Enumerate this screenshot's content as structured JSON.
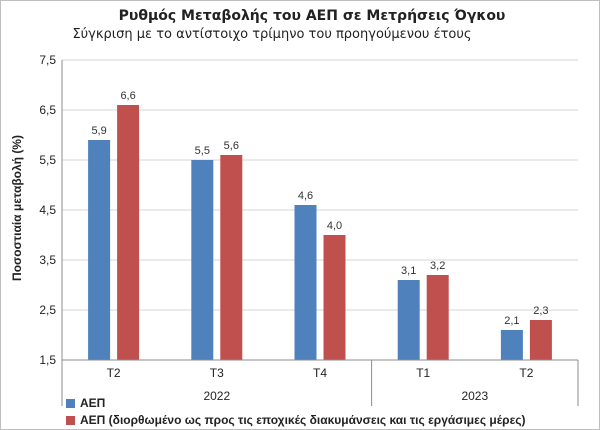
{
  "chart_data": {
    "type": "bar",
    "title": "Ρυθμός Μεταβολής του ΑΕΠ σε Μετρήσεις Όγκου",
    "subtitle": "Σύγκριση με το αντίστοιχο τρίμηνο του προηγούμενου έτους",
    "ylabel": "Ποσοστιαία μεταβολή (%)",
    "xlabel": "",
    "ylim": [
      1.5,
      7.5
    ],
    "yticks": [
      "1,5",
      "2,5",
      "3,5",
      "4,5",
      "5,5",
      "6,5",
      "7,5"
    ],
    "ytick_values": [
      1.5,
      2.5,
      3.5,
      4.5,
      5.5,
      6.5,
      7.5
    ],
    "categories": [
      "T2",
      "T3",
      "T4",
      "T1",
      "T2"
    ],
    "groups": [
      {
        "label": "2022",
        "count": 3
      },
      {
        "label": "2023",
        "count": 2
      }
    ],
    "grid": true,
    "legend_position": "bottom-left",
    "series": [
      {
        "name": "ΑΕΠ",
        "color": "#4f81bd",
        "values": [
          5.9,
          5.5,
          4.6,
          3.1,
          2.1
        ],
        "labels": [
          "5,9",
          "5,5",
          "4,6",
          "3,1",
          "2,1"
        ]
      },
      {
        "name": "ΑΕΠ (διορθωμένο ως προς τις εποχικές διακυμάνσεις και τις εργάσιμες μέρες)",
        "color": "#c0504d",
        "values": [
          6.6,
          5.6,
          4.0,
          3.2,
          2.3
        ],
        "labels": [
          "6,6",
          "5,6",
          "4,0",
          "3,2",
          "2,3"
        ]
      }
    ]
  }
}
